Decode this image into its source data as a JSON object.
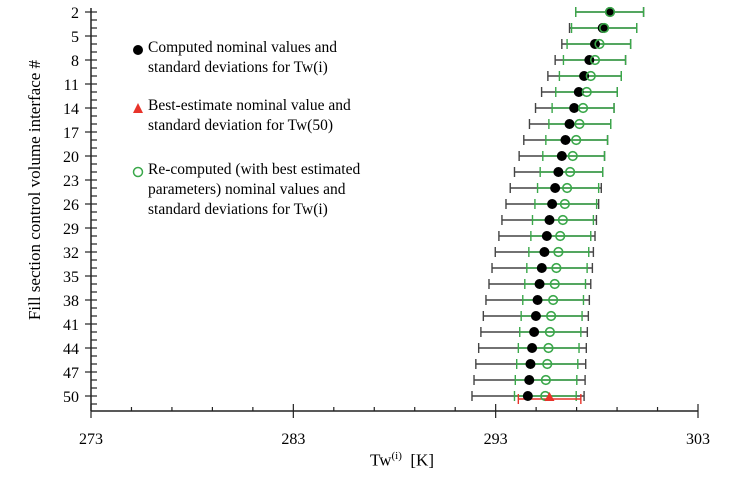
{
  "chart_data": {
    "type": "scatter",
    "xlabel_main": "Tw",
    "xlabel_sup": "(i)",
    "xlabel_unit": "[K]",
    "ylabel": "Fill section control volume interface #",
    "xlim": [
      273,
      303
    ],
    "x_ticks": [
      "273",
      "283",
      "293",
      "303"
    ],
    "y_ticks": [
      "2",
      "5",
      "8",
      "11",
      "14",
      "17",
      "20",
      "23",
      "26",
      "29",
      "32",
      "35",
      "38",
      "41",
      "44",
      "47",
      "50"
    ],
    "ylim": [
      2,
      50
    ],
    "y_inverted": true,
    "legend": [
      {
        "marker": "filled-circle",
        "color": "#000000",
        "lines": [
          "Computed nominal values and",
          "standard deviations for Tw(i)"
        ]
      },
      {
        "marker": "triangle",
        "color": "#e8332a",
        "lines": [
          "Best-estimate nominal value and",
          "standard deviation for Tw(50)"
        ]
      },
      {
        "marker": "open-circle",
        "color": "#3aa84a",
        "lines": [
          "Re-computed (with best estimated",
          "parameters) nominal values and",
          "standard deviations for Tw(i)"
        ]
      }
    ],
    "series": [
      {
        "name": "Computed",
        "color": "#000000",
        "interface": [
          2,
          4,
          6,
          8,
          10,
          12,
          14,
          16,
          18,
          20,
          22,
          24,
          26,
          28,
          30,
          32,
          34,
          36,
          38,
          40,
          42,
          44,
          46,
          48,
          50
        ],
        "nominal": [
          298.65,
          298.29,
          297.91,
          297.63,
          297.37,
          297.11,
          296.88,
          296.65,
          296.45,
          296.27,
          296.1,
          295.94,
          295.79,
          295.66,
          295.53,
          295.41,
          295.28,
          295.17,
          295.07,
          294.99,
          294.9,
          294.8,
          294.72,
          294.66,
          294.59
        ],
        "lower": [
          296.96,
          296.65,
          296.27,
          295.94,
          295.58,
          295.27,
          294.97,
          294.67,
          294.39,
          294.16,
          293.93,
          293.72,
          293.51,
          293.31,
          293.16,
          292.98,
          292.82,
          292.67,
          292.52,
          292.39,
          292.27,
          292.16,
          292.02,
          291.93,
          291.83
        ],
        "upper": [
          300.31,
          299.97,
          299.67,
          299.42,
          299.21,
          299.01,
          298.85,
          298.69,
          298.53,
          298.38,
          298.29,
          298.22,
          298.09,
          297.98,
          297.91,
          297.83,
          297.78,
          297.7,
          297.63,
          297.58,
          297.53,
          297.48,
          297.45,
          297.42,
          297.37
        ]
      },
      {
        "name": "Re-computed",
        "color": "#3aa84a",
        "interface": [
          2,
          4,
          6,
          8,
          10,
          12,
          14,
          16,
          18,
          20,
          22,
          24,
          26,
          28,
          30,
          32,
          34,
          36,
          38,
          40,
          42,
          44,
          46,
          48,
          50
        ],
        "nominal": [
          298.65,
          298.36,
          298.13,
          297.91,
          297.7,
          297.5,
          297.32,
          297.14,
          296.98,
          296.81,
          296.68,
          296.53,
          296.42,
          296.32,
          296.19,
          296.1,
          296.0,
          295.92,
          295.84,
          295.74,
          295.68,
          295.61,
          295.55,
          295.48,
          295.45
        ],
        "lower": [
          296.96,
          296.75,
          296.53,
          296.35,
          296.15,
          295.97,
          295.79,
          295.63,
          295.48,
          295.33,
          295.2,
          295.07,
          294.94,
          294.82,
          294.74,
          294.64,
          294.54,
          294.44,
          294.34,
          294.26,
          294.19,
          294.12,
          294.04,
          293.97,
          293.93
        ],
        "upper": [
          300.31,
          299.97,
          299.67,
          299.42,
          299.21,
          299.01,
          298.85,
          298.69,
          298.53,
          298.38,
          298.29,
          298.09,
          297.99,
          297.83,
          297.7,
          297.6,
          297.52,
          297.44,
          297.34,
          297.27,
          297.21,
          297.12,
          297.06,
          297.01,
          296.98
        ]
      },
      {
        "name": "Best-estimate",
        "color": "#e8332a",
        "interface": [
          50
        ],
        "nominal": [
          295.66
        ],
        "lower": [
          294.12
        ],
        "upper": [
          297.21
        ]
      }
    ]
  }
}
